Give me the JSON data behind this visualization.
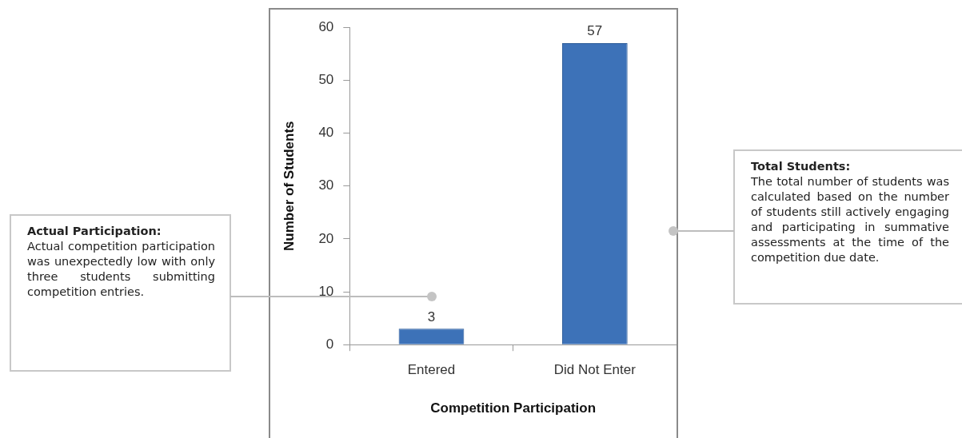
{
  "chart_data": {
    "type": "bar",
    "xlabel": "Competition Participation",
    "ylabel": "Number of Students",
    "categories": [
      "Entered",
      "Did Not Enter"
    ],
    "values": [
      3,
      57
    ],
    "color": "#3d72b8",
    "ylim": [
      0,
      60
    ],
    "yticks": [
      0,
      10,
      20,
      30,
      40,
      50,
      60
    ],
    "grid": false,
    "data_labels": true,
    "annotations": [
      "Actual Participation:",
      "Actual competition participation was unexpectedly low with only three students submitting competition entries.",
      "Total Students:",
      "The total number of students was calculated based on the number of students still actively engaging and participating in summative assessments at the time of the competition due date."
    ]
  }
}
